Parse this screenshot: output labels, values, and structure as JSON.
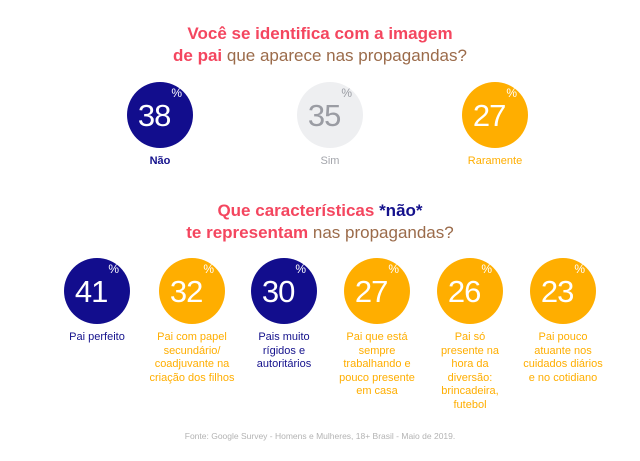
{
  "q1": {
    "line1": "Você se identifica com a imagem",
    "line2_bold": "de pai",
    "line2_rest": " que aparece nas propagandas?",
    "answers": [
      {
        "value": "38",
        "unit": "%",
        "label": "Não",
        "color": "#120d8d"
      },
      {
        "value": "35",
        "unit": "%",
        "label": "Sim",
        "color": "#eeeff1"
      },
      {
        "value": "27",
        "unit": "%",
        "label": "Raramente",
        "color": "#ffae00"
      }
    ]
  },
  "q2": {
    "line1_a": "Que características ",
    "line1_b": "*não*",
    "line2_bold": "te representam",
    "line2_rest": " nas propagandas?",
    "answers": [
      {
        "value": "41",
        "unit": "%",
        "label": "Pai perfeito",
        "color": "#120d8d"
      },
      {
        "value": "32",
        "unit": "%",
        "label": "Pai com papel secundário/ coadjuvante na criação dos filhos",
        "color": "#ffae00"
      },
      {
        "value": "30",
        "unit": "%",
        "label": "Pais muito rígidos e autoritários",
        "color": "#120d8d"
      },
      {
        "value": "27",
        "unit": "%",
        "label": "Pai que está sempre trabalhando e pouco presente em casa",
        "color": "#ffae00"
      },
      {
        "value": "26",
        "unit": "%",
        "label": "Pai só presente na hora da diversão: brincadeira, futebol",
        "color": "#ffae00"
      },
      {
        "value": "23",
        "unit": "%",
        "label": "Pai pouco atuante nos cuidados diários e no cotidiano",
        "color": "#ffae00"
      }
    ]
  },
  "footer": "Fonte: Google Survey - Homens e Mulheres, 18+ Brasil - Maio de 2019."
}
